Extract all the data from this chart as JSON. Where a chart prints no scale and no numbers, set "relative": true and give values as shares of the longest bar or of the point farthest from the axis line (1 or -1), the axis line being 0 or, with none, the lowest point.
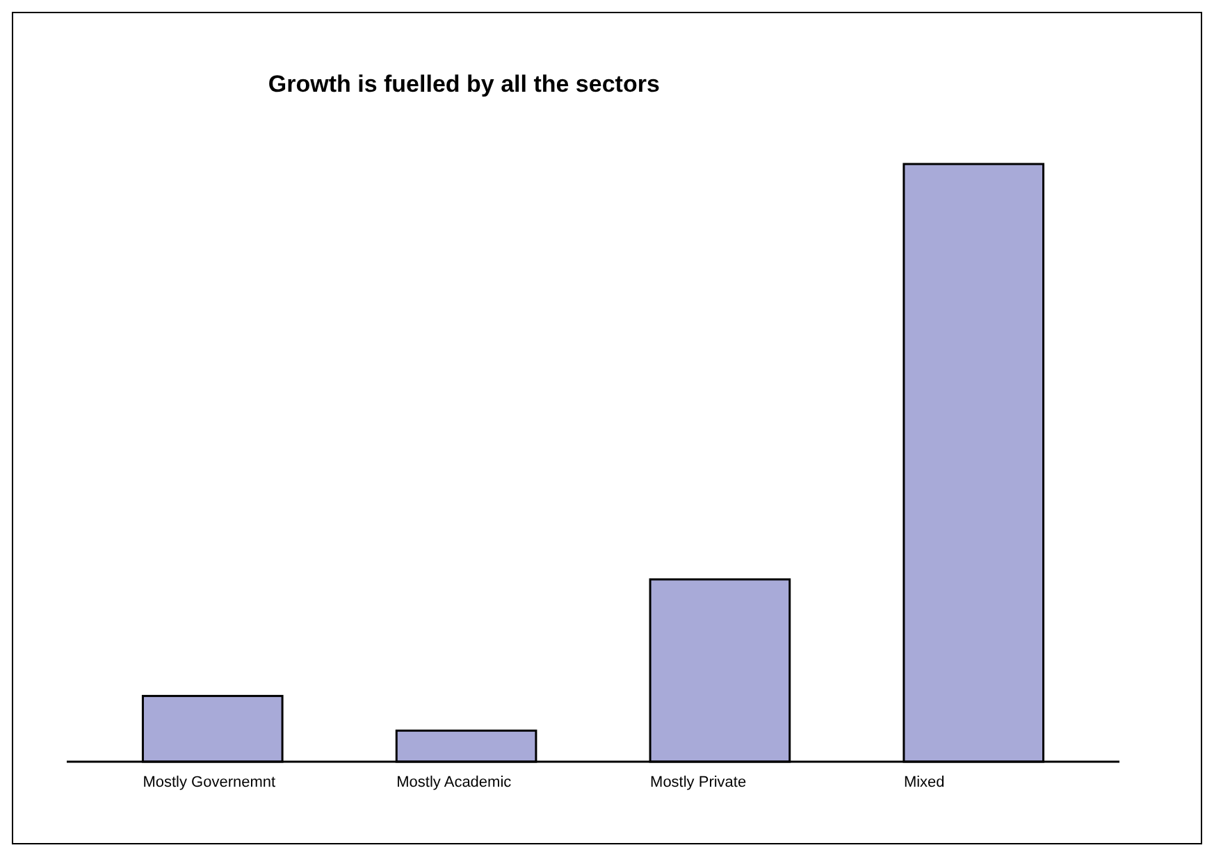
{
  "chart_data": {
    "type": "bar",
    "title": "Growth is fuelled by all the sectors",
    "categories": [
      "Mostly Governemnt",
      "Mostly Academic",
      "Mostly Private",
      "Mixed"
    ],
    "values": [
      0.11,
      0.052,
      0.305,
      1
    ],
    "color": "#a8aad8",
    "relative": true
  }
}
